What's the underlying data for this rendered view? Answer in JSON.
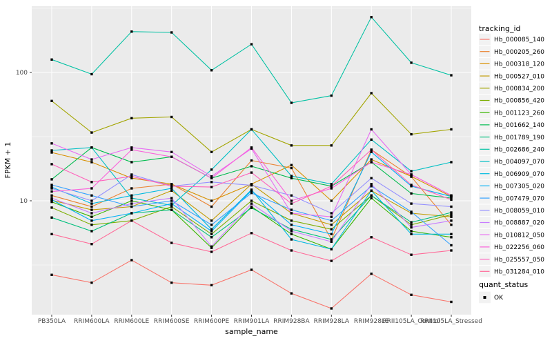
{
  "chart_data": {
    "type": "line",
    "title": "",
    "xlabel": "sample_name",
    "ylabel": "FPKM + 1",
    "y_scale": "log10",
    "y_major_ticks": [
      10,
      100
    ],
    "y_minor_ticks": [
      3.1623,
      31.623,
      316.23
    ],
    "ylim": [
      1.3,
      330
    ],
    "grid": "on",
    "legend_position": "right",
    "categories": [
      "PB350LA",
      "RRIM600LA",
      "RRIM600LE",
      "RRIM600SE",
      "RRIM600PE",
      "RRIM901LA",
      "RRIM928BA",
      "RRIM928LA",
      "RRIM928LE",
      "RRII105LA_Control",
      "RRII105LA_Stressed"
    ],
    "legend": {
      "title": "tracking_id"
    },
    "legend2": {
      "title": "quant_status",
      "items": [
        {
          "label": "OK",
          "symbol": "black-square"
        }
      ]
    },
    "point_symbol": "black-square",
    "point_color": "#000000",
    "series": [
      {
        "name": "Hb_000085_140",
        "color": "#F8766D",
        "values": [
          2.65,
          2.3,
          3.45,
          2.3,
          2.2,
          2.9,
          1.9,
          1.45,
          2.7,
          1.85,
          1.63
        ]
      },
      {
        "name": "Hb_000205_260",
        "color": "#EA8331",
        "values": [
          11,
          9,
          12.5,
          13.5,
          9,
          20.6,
          18,
          5,
          25,
          15.4,
          6.5
        ]
      },
      {
        "name": "Hb_000318_120",
        "color": "#D89000",
        "values": [
          23.8,
          20,
          15,
          13.5,
          10,
          13.5,
          19,
          10,
          21,
          15.5,
          10.8
        ]
      },
      {
        "name": "Hb_000527_010",
        "color": "#C09B00",
        "values": [
          10.1,
          8.5,
          9,
          12,
          7,
          13.5,
          8,
          6.5,
          12,
          8,
          7.5
        ]
      },
      {
        "name": "Hb_000834_200",
        "color": "#A3A500",
        "values": [
          60,
          34,
          44,
          45,
          24,
          36,
          27,
          27,
          69,
          33,
          36
        ]
      },
      {
        "name": "Hb_000856_420",
        "color": "#7CAE00",
        "values": [
          8.85,
          6.5,
          7,
          9,
          5.5,
          10,
          7,
          6,
          11,
          6.5,
          7.8
        ]
      },
      {
        "name": "Hb_001123_260",
        "color": "#39B600",
        "values": [
          9.8,
          7.5,
          10,
          8.5,
          4.3,
          9,
          5.5,
          4.2,
          10.5,
          5.8,
          5.2
        ]
      },
      {
        "name": "Hb_001662_140",
        "color": "#00BB4E",
        "values": [
          14.7,
          26,
          20,
          22,
          15,
          18.6,
          15,
          13,
          20,
          11.4,
          10.5
        ]
      },
      {
        "name": "Hb_001789_190",
        "color": "#00BF7D",
        "values": [
          7.4,
          5.8,
          8,
          8.5,
          5.2,
          8.8,
          6,
          5,
          11,
          6.8,
          8.1
        ]
      },
      {
        "name": "Hb_002686_240",
        "color": "#00C1A3",
        "values": [
          126,
          97,
          208,
          205,
          104,
          166,
          58,
          66,
          270,
          119,
          95
        ]
      },
      {
        "name": "Hb_004097_070",
        "color": "#00BFC4",
        "values": [
          24.7,
          26,
          10.5,
          9.2,
          17.5,
          36,
          15.6,
          13.5,
          30,
          17,
          20
        ]
      },
      {
        "name": "Hb_006909_070",
        "color": "#00BAE0",
        "values": [
          12.8,
          9.5,
          11,
          12.5,
          6,
          12.2,
          5,
          4.2,
          12,
          5.5,
          5.5
        ]
      },
      {
        "name": "Hb_007305_020",
        "color": "#00B0F6",
        "values": [
          10.2,
          7,
          8,
          9.5,
          5.8,
          12,
          6.5,
          5.5,
          24,
          13,
          10.8
        ]
      },
      {
        "name": "Hb_007479_070",
        "color": "#35A2FF",
        "values": [
          13.3,
          11,
          9,
          10,
          6.5,
          11.5,
          8.5,
          7,
          13,
          8.2,
          4.5
        ]
      },
      {
        "name": "Hb_008059_010",
        "color": "#9590FF",
        "values": [
          12.5,
          10,
          16,
          13,
          14,
          13.2,
          11,
          8,
          15,
          9.5,
          9
        ]
      },
      {
        "name": "Hb_008887_020",
        "color": "#C77CFF",
        "values": [
          10.5,
          8,
          9.5,
          10.5,
          4.4,
          9.5,
          5.8,
          4.8,
          13.5,
          6.2,
          7
        ]
      },
      {
        "name": "Hb_010812_050",
        "color": "#E76BF3",
        "values": [
          28,
          21,
          26,
          24,
          15.5,
          25.5,
          8,
          7.5,
          36,
          16,
          11
        ]
      },
      {
        "name": "Hb_022256_060",
        "color": "#FA62DB",
        "values": [
          11.8,
          12.5,
          25,
          22,
          15,
          26,
          10,
          12.5,
          20,
          16,
          11
        ]
      },
      {
        "name": "Hb_025557_050",
        "color": "#FF62BC",
        "values": [
          19.3,
          14,
          15.5,
          13,
          12.8,
          16.6,
          9.5,
          13,
          25,
          13.3,
          10.2
        ]
      },
      {
        "name": "Hb_031284_010",
        "color": "#FF6A98",
        "values": [
          5.5,
          4.6,
          7,
          4.7,
          4,
          5.6,
          4.1,
          3.4,
          5.2,
          3.8,
          4.1
        ]
      }
    ],
    "colors": {
      "panel_bg": "#EBEBEB",
      "grid": "#FFFFFF",
      "tick_label": "#4D4D4D",
      "axis_title": "#000000",
      "legend_key_bg": "#F2F2F2",
      "tick_mark": "#333333"
    }
  }
}
